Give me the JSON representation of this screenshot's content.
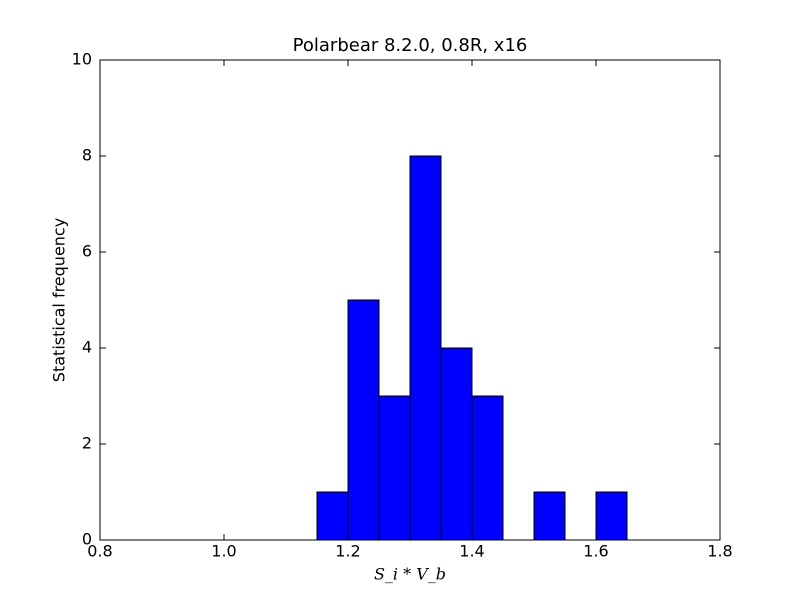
{
  "chart_data": {
    "type": "histogram",
    "title": "Polarbear 8.2.0, 0.8R, x16",
    "xlabel": "S_i * V_b",
    "ylabel": "Statistical frequency",
    "bins": [
      1.0,
      1.05,
      1.1,
      1.15,
      1.2,
      1.25,
      1.3,
      1.35,
      1.4,
      1.45,
      1.5,
      1.55,
      1.6,
      1.65,
      1.7,
      1.75,
      1.8
    ],
    "counts": [
      0,
      0,
      0,
      1,
      5,
      3,
      8,
      4,
      3,
      0,
      1,
      0,
      1,
      0,
      0,
      0
    ],
    "color": "#0000ff",
    "xlim": [
      0.8,
      1.8
    ],
    "xticks": [
      0.8,
      {
        "value": 1,
        "label": "1.0"
      },
      1.2,
      1.4,
      1.6,
      1.8
    ],
    "ylim": [
      0,
      10
    ],
    "yticks": [
      0,
      2,
      4,
      6,
      8,
      10
    ]
  }
}
